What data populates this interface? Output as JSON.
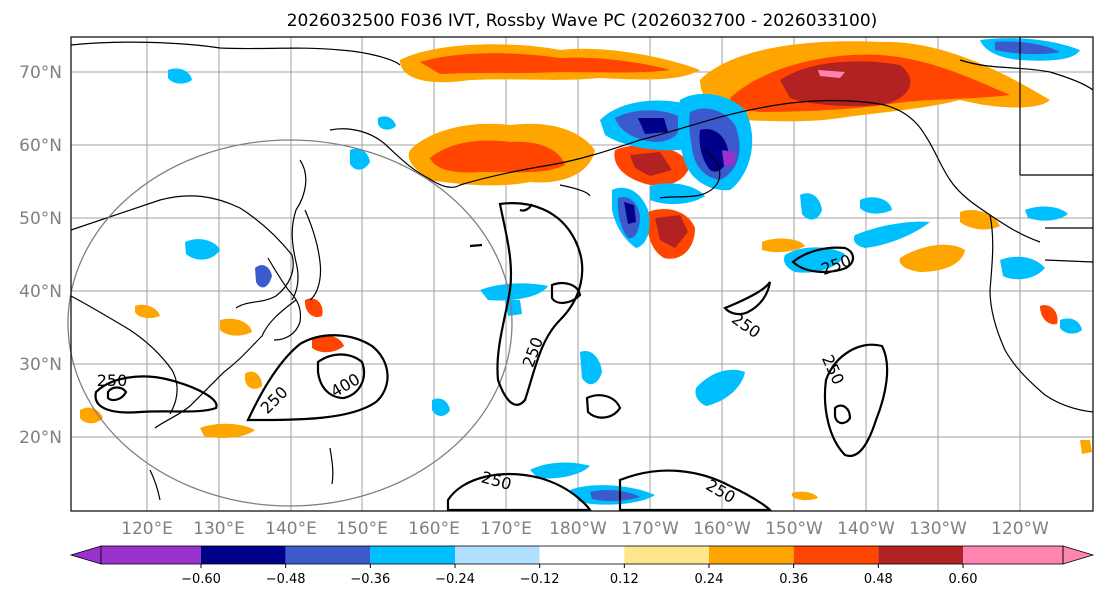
{
  "title": "2026032500 F036 IVT, Rossby Wave PC (2026032700 - 2026033100)",
  "lat_labels": [
    "70°N",
    "60°N",
    "50°N",
    "40°N",
    "30°N",
    "20°N"
  ],
  "lon_labels": [
    "120°E",
    "130°E",
    "140°E",
    "150°E",
    "160°E",
    "170°E",
    "180°W",
    "170°W",
    "160°W",
    "150°W",
    "140°W",
    "130°W",
    "120°W"
  ],
  "contour_labels": {
    "c1": "250",
    "c2": "250",
    "c3": "400",
    "c4": "250",
    "c5": "250",
    "c6": "250",
    "c7": "250",
    "c8": "250",
    "c9": "250"
  },
  "colorbar": {
    "ticks": [
      "−0.60",
      "−0.48",
      "−0.36",
      "−0.24",
      "−0.12",
      "0.12",
      "0.24",
      "0.36",
      "0.48",
      "0.60"
    ],
    "tick_values": [
      -0.6,
      -0.48,
      -0.36,
      -0.24,
      -0.12,
      0.12,
      0.24,
      0.36,
      0.48,
      0.6
    ],
    "colors": [
      "#9932cc",
      "#00008b",
      "#3b5bcc",
      "#00bfff",
      "#b0e0ff",
      "#ffffff",
      "#ffe68c",
      "#ffa500",
      "#ff4500",
      "#b22222",
      "#ff85b0"
    ]
  },
  "palette": {
    "neg_strong": "#9932cc",
    "neg_dark": "#00008b",
    "neg_mid": "#3b5bcc",
    "neg_cyan": "#00bfff",
    "neg_light": "#b0e0ff",
    "pos_light": "#ffe68c",
    "pos_orange": "#ffa500",
    "pos_red": "#ff4500",
    "pos_dark": "#b22222",
    "pos_pink": "#ff85b0"
  }
}
